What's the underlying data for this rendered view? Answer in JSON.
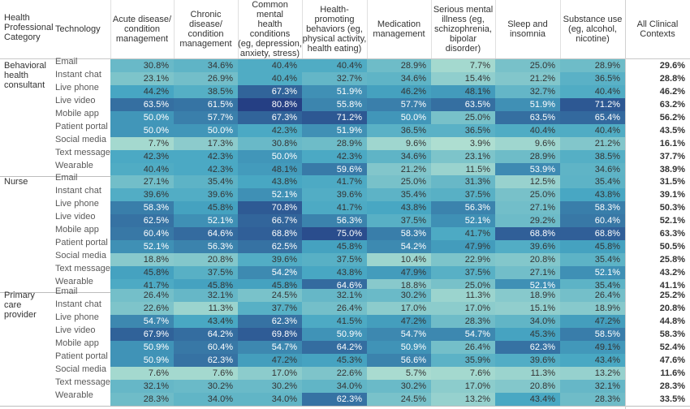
{
  "chart_data": {
    "type": "heatmap",
    "row_header_1": "Health Professional Category",
    "row_header_2": "Technology",
    "columns": [
      "Acute disease/ condition management",
      "Chronic disease/ condition management",
      "Common mental health conditions (eg, depression, anxiety, stress)",
      "Health-promoting behaviors (eg, physical activity, health eating)",
      "Medication management",
      "Serious mental illness (eg, schizophrenia, bipolar disorder)",
      "Sleep and insomnia",
      "Substance use (eg, alcohol, nicotine)",
      "All Clinical Contexts"
    ],
    "column_headers": [
      [
        "Acute disease/",
        "condition",
        "management"
      ],
      [
        "Chronic disease/",
        "condition",
        "management"
      ],
      [
        "Common mental",
        "health conditions",
        "(eg, depression,",
        "anxiety, stress)"
      ],
      [
        "Health-",
        "promoting",
        "behaviors (eg,",
        "physical activity,",
        "health eating)"
      ],
      [
        "Medication",
        "management"
      ],
      [
        "Serious mental",
        "illness (eg,",
        "schizophrenia,",
        "bipolar disorder)"
      ],
      [
        "Sleep and",
        "insomnia"
      ],
      [
        "Substance use",
        "(eg, alcohol,",
        "nicotine)"
      ],
      [
        "All Clinical",
        "Contexts"
      ]
    ],
    "technologies": [
      "Email",
      "Instant chat",
      "Live phone",
      "Live video",
      "Mobile app",
      "Patient portal",
      "Social media",
      "Text message",
      "Wearable"
    ],
    "groups": [
      {
        "name": "Behavioral health consultant",
        "name_lines": [
          "Behavioral",
          "health",
          "consultant"
        ],
        "values": [
          [
            "30.8%",
            "34.6%",
            "40.4%",
            "40.4%",
            "28.9%",
            "7.7%",
            "25.0%",
            "28.9%",
            "29.6%"
          ],
          [
            "23.1%",
            "26.9%",
            "40.4%",
            "32.7%",
            "34.6%",
            "15.4%",
            "21.2%",
            "36.5%",
            "28.8%"
          ],
          [
            "44.2%",
            "38.5%",
            "67.3%",
            "51.9%",
            "46.2%",
            "48.1%",
            "32.7%",
            "40.4%",
            "46.2%"
          ],
          [
            "63.5%",
            "61.5%",
            "80.8%",
            "55.8%",
            "57.7%",
            "63.5%",
            "51.9%",
            "71.2%",
            "63.2%"
          ],
          [
            "50.0%",
            "57.7%",
            "67.3%",
            "71.2%",
            "50.0%",
            "25.0%",
            "63.5%",
            "65.4%",
            "56.2%"
          ],
          [
            "50.0%",
            "50.0%",
            "42.3%",
            "51.9%",
            "36.5%",
            "36.5%",
            "40.4%",
            "40.4%",
            "43.5%"
          ],
          [
            "7.7%",
            "17.3%",
            "30.8%",
            "28.9%",
            "9.6%",
            "3.9%",
            "9.6%",
            "21.2%",
            "16.1%"
          ],
          [
            "42.3%",
            "42.3%",
            "50.0%",
            "42.3%",
            "34.6%",
            "23.1%",
            "28.9%",
            "38.5%",
            "37.7%"
          ],
          [
            "40.4%",
            "42.3%",
            "48.1%",
            "59.6%",
            "21.2%",
            "11.5%",
            "53.9%",
            "34.6%",
            "38.9%"
          ]
        ]
      },
      {
        "name": "Nurse",
        "name_lines": [
          "Nurse"
        ],
        "values": [
          [
            "27.1%",
            "35.4%",
            "43.8%",
            "41.7%",
            "25.0%",
            "31.3%",
            "12.5%",
            "35.4%",
            "31.5%"
          ],
          [
            "39.6%",
            "39.6%",
            "52.1%",
            "39.6%",
            "35.4%",
            "37.5%",
            "25.0%",
            "43.8%",
            "39.1%"
          ],
          [
            "58.3%",
            "45.8%",
            "70.8%",
            "41.7%",
            "43.8%",
            "56.3%",
            "27.1%",
            "58.3%",
            "50.3%"
          ],
          [
            "62.5%",
            "52.1%",
            "66.7%",
            "56.3%",
            "37.5%",
            "52.1%",
            "29.2%",
            "60.4%",
            "52.1%"
          ],
          [
            "60.4%",
            "64.6%",
            "68.8%",
            "75.0%",
            "58.3%",
            "41.7%",
            "68.8%",
            "68.8%",
            "63.3%"
          ],
          [
            "52.1%",
            "56.3%",
            "62.5%",
            "45.8%",
            "54.2%",
            "47.9%",
            "39.6%",
            "45.8%",
            "50.5%"
          ],
          [
            "18.8%",
            "20.8%",
            "39.6%",
            "37.5%",
            "10.4%",
            "22.9%",
            "20.8%",
            "35.4%",
            "25.8%"
          ],
          [
            "45.8%",
            "37.5%",
            "54.2%",
            "43.8%",
            "47.9%",
            "37.5%",
            "27.1%",
            "52.1%",
            "43.2%"
          ],
          [
            "41.7%",
            "45.8%",
            "45.8%",
            "64.6%",
            "18.8%",
            "25.0%",
            "52.1%",
            "35.4%",
            "41.1%"
          ]
        ]
      },
      {
        "name": "Primary care provider",
        "name_lines": [
          "Primary care",
          "provider"
        ],
        "values": [
          [
            "26.4%",
            "32.1%",
            "24.5%",
            "32.1%",
            "30.2%",
            "11.3%",
            "18.9%",
            "26.4%",
            "25.2%"
          ],
          [
            "22.6%",
            "11.3%",
            "37.7%",
            "26.4%",
            "17.0%",
            "17.0%",
            "15.1%",
            "18.9%",
            "20.8%"
          ],
          [
            "54.7%",
            "43.4%",
            "62.3%",
            "41.5%",
            "47.2%",
            "28.3%",
            "34.0%",
            "47.2%",
            "44.8%"
          ],
          [
            "67.9%",
            "64.2%",
            "69.8%",
            "50.9%",
            "54.7%",
            "54.7%",
            "45.3%",
            "58.5%",
            "58.3%"
          ],
          [
            "50.9%",
            "60.4%",
            "54.7%",
            "64.2%",
            "50.9%",
            "26.4%",
            "62.3%",
            "49.1%",
            "52.4%"
          ],
          [
            "50.9%",
            "62.3%",
            "47.2%",
            "45.3%",
            "56.6%",
            "35.9%",
            "39.6%",
            "43.4%",
            "47.6%"
          ],
          [
            "7.6%",
            "7.6%",
            "17.0%",
            "22.6%",
            "5.7%",
            "7.6%",
            "11.3%",
            "13.2%",
            "11.6%"
          ],
          [
            "32.1%",
            "30.2%",
            "30.2%",
            "34.0%",
            "30.2%",
            "17.0%",
            "20.8%",
            "32.1%",
            "28.3%"
          ],
          [
            "28.3%",
            "34.0%",
            "34.0%",
            "62.3%",
            "24.5%",
            "13.2%",
            "43.4%",
            "28.3%",
            "33.5%"
          ]
        ]
      }
    ],
    "color_scale": {
      "low": "#b8e3d2",
      "mid": "#47a7c3",
      "high": "#253f84"
    },
    "summary_column_bg": "#ffffff"
  }
}
